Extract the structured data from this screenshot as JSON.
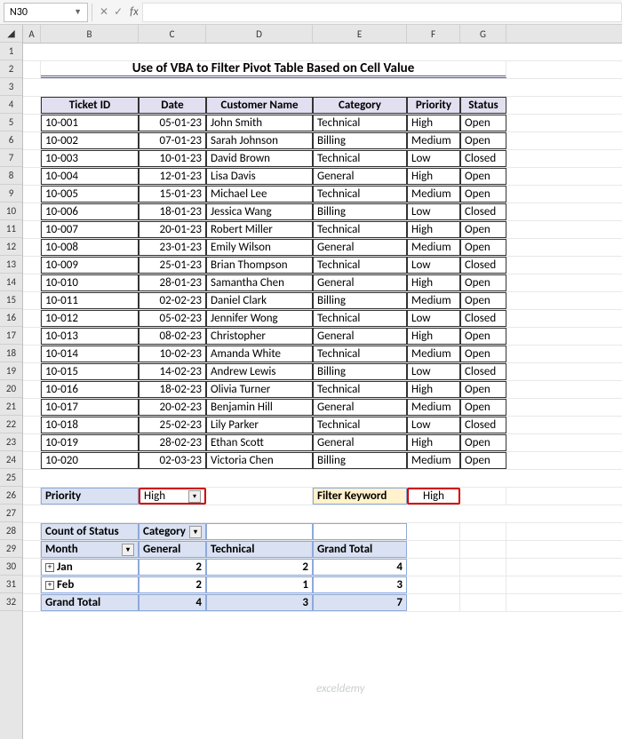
{
  "namebox": {
    "ref": "N30"
  },
  "title": "Use of VBA to Filter Pivot Table Based on Cell Value",
  "cols": {
    "A": 20,
    "B": 110,
    "C": 76,
    "D": 120,
    "E": 106,
    "F": 60,
    "G": 52
  },
  "headers": {
    "ticket": "Ticket ID",
    "date": "Date",
    "customer": "Customer Name",
    "category": "Category",
    "priority": "Priority",
    "status": "Status"
  },
  "rows": [
    {
      "id": "10-001",
      "date": "05-01-23",
      "name": "John Smith",
      "cat": "Technical",
      "pri": "High",
      "st": "Open"
    },
    {
      "id": "10-002",
      "date": "07-01-23",
      "name": "Sarah Johnson",
      "cat": "Billing",
      "pri": "Medium",
      "st": "Open"
    },
    {
      "id": "10-003",
      "date": "10-01-23",
      "name": "David Brown",
      "cat": "Technical",
      "pri": "Low",
      "st": "Closed"
    },
    {
      "id": "10-004",
      "date": "12-01-23",
      "name": "Lisa Davis",
      "cat": "General",
      "pri": "High",
      "st": "Open"
    },
    {
      "id": "10-005",
      "date": "15-01-23",
      "name": "Michael Lee",
      "cat": "Technical",
      "pri": "Medium",
      "st": "Open"
    },
    {
      "id": "10-006",
      "date": "18-01-23",
      "name": "Jessica Wang",
      "cat": "Billing",
      "pri": "Low",
      "st": "Closed"
    },
    {
      "id": "10-007",
      "date": "20-01-23",
      "name": "Robert Miller",
      "cat": "Technical",
      "pri": "High",
      "st": "Open"
    },
    {
      "id": "10-008",
      "date": "23-01-23",
      "name": "Emily Wilson",
      "cat": "General",
      "pri": "Medium",
      "st": "Open"
    },
    {
      "id": "10-009",
      "date": "25-01-23",
      "name": "Brian Thompson",
      "cat": "Technical",
      "pri": "Low",
      "st": "Closed"
    },
    {
      "id": "10-010",
      "date": "28-01-23",
      "name": "Samantha Chen",
      "cat": "General",
      "pri": "High",
      "st": "Open"
    },
    {
      "id": "10-011",
      "date": "02-02-23",
      "name": "Daniel Clark",
      "cat": "Billing",
      "pri": "Medium",
      "st": "Open"
    },
    {
      "id": "10-012",
      "date": "05-02-23",
      "name": "Jennifer Wong",
      "cat": "Technical",
      "pri": "Low",
      "st": "Closed"
    },
    {
      "id": "10-013",
      "date": "08-02-23",
      "name": "Christopher",
      "cat": "General",
      "pri": "High",
      "st": "Open"
    },
    {
      "id": "10-014",
      "date": "10-02-23",
      "name": "Amanda White",
      "cat": "Technical",
      "pri": "Medium",
      "st": "Open"
    },
    {
      "id": "10-015",
      "date": "14-02-23",
      "name": "Andrew Lewis",
      "cat": "Billing",
      "pri": "Low",
      "st": "Closed"
    },
    {
      "id": "10-016",
      "date": "18-02-23",
      "name": "Olivia Turner",
      "cat": "Technical",
      "pri": "High",
      "st": "Open"
    },
    {
      "id": "10-017",
      "date": "20-02-23",
      "name": "Benjamin Hill",
      "cat": "General",
      "pri": "Medium",
      "st": "Open"
    },
    {
      "id": "10-018",
      "date": "25-02-23",
      "name": "Lily Parker",
      "cat": "Technical",
      "pri": "Low",
      "st": "Closed"
    },
    {
      "id": "10-019",
      "date": "28-02-23",
      "name": "Ethan Scott",
      "cat": "General",
      "pri": "High",
      "st": "Open"
    },
    {
      "id": "10-020",
      "date": "02-03-23",
      "name": "Victoria Chen",
      "cat": "Billing",
      "pri": "Medium",
      "st": "Open"
    }
  ],
  "filter": {
    "label": "Priority",
    "value": "High",
    "kw_label": "Filter Keyword",
    "kw_value": "High"
  },
  "pivot": {
    "countLabel": "Count of Status",
    "catLabel": "Category",
    "monthLabel": "Month",
    "col1": "General",
    "col2": "Technical",
    "gt": "Grand Total",
    "r1": {
      "m": "Jan",
      "v1": "2",
      "v2": "2",
      "vt": "4"
    },
    "r2": {
      "m": "Feb",
      "v1": "2",
      "v2": "1",
      "vt": "3"
    },
    "rt": {
      "m": "Grand Total",
      "v1": "4",
      "v2": "3",
      "vt": "7"
    }
  },
  "watermark": "exceldemy"
}
